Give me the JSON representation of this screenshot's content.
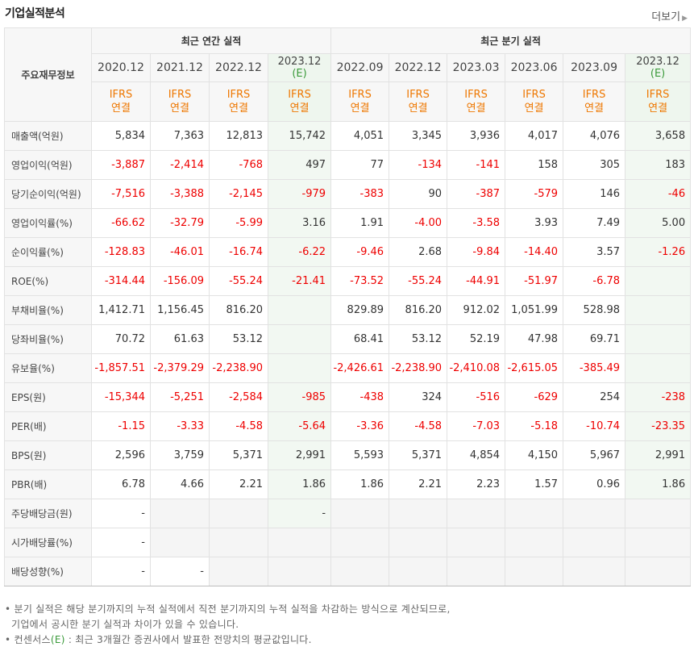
{
  "header": {
    "title": "기업실적분석",
    "more_label": "더보기"
  },
  "table": {
    "stub_header": "주요재무정보",
    "groups": [
      {
        "label": "최근 연간 실적"
      },
      {
        "label": "최근 분기 실적"
      }
    ],
    "periods": [
      {
        "label": "2020.12",
        "estimate": false
      },
      {
        "label": "2021.12",
        "estimate": false
      },
      {
        "label": "2022.12",
        "estimate": false
      },
      {
        "label": "2023.12",
        "estimate": true,
        "estimate_mark": "(E)"
      },
      {
        "label": "2022.09",
        "estimate": false
      },
      {
        "label": "2022.12",
        "estimate": false
      },
      {
        "label": "2023.03",
        "estimate": false
      },
      {
        "label": "2023.06",
        "estimate": false
      },
      {
        "label": "2023.09",
        "estimate": false
      },
      {
        "label": "2023.12",
        "estimate": true,
        "estimate_mark": "(E)"
      }
    ],
    "standard": {
      "line1": "IFRS",
      "line2": "연결"
    },
    "rows": [
      {
        "label": "매출액(억원)",
        "values": [
          "5,834",
          "7,363",
          "12,813",
          "15,742",
          "4,051",
          "3,345",
          "3,936",
          "4,017",
          "4,076",
          "3,658"
        ]
      },
      {
        "label": "영업이익(억원)",
        "values": [
          "-3,887",
          "-2,414",
          "-768",
          "497",
          "77",
          "-134",
          "-141",
          "158",
          "305",
          "183"
        ]
      },
      {
        "label": "당기순이익(억원)",
        "values": [
          "-7,516",
          "-3,388",
          "-2,145",
          "-979",
          "-383",
          "90",
          "-387",
          "-579",
          "146",
          "-46"
        ]
      },
      {
        "label": "영업이익률(%)",
        "values": [
          "-66.62",
          "-32.79",
          "-5.99",
          "3.16",
          "1.91",
          "-4.00",
          "-3.58",
          "3.93",
          "7.49",
          "5.00"
        ]
      },
      {
        "label": "순이익률(%)",
        "values": [
          "-128.83",
          "-46.01",
          "-16.74",
          "-6.22",
          "-9.46",
          "2.68",
          "-9.84",
          "-14.40",
          "3.57",
          "-1.26"
        ]
      },
      {
        "label": "ROE(%)",
        "values": [
          "-314.44",
          "-156.09",
          "-55.24",
          "-21.41",
          "-73.52",
          "-55.24",
          "-44.91",
          "-51.97",
          "-6.78",
          ""
        ]
      },
      {
        "label": "부채비율(%)",
        "values": [
          "1,412.71",
          "1,156.45",
          "816.20",
          "",
          "829.89",
          "816.20",
          "912.02",
          "1,051.99",
          "528.98",
          ""
        ]
      },
      {
        "label": "당좌비율(%)",
        "values": [
          "70.72",
          "61.63",
          "53.12",
          "",
          "68.41",
          "53.12",
          "52.19",
          "47.98",
          "69.71",
          ""
        ]
      },
      {
        "label": "유보율(%)",
        "values": [
          "-1,857.51",
          "-2,379.29",
          "-2,238.90",
          "",
          "-2,426.61",
          "-2,238.90",
          "-2,410.08",
          "-2,615.05",
          "-385.49",
          ""
        ]
      },
      {
        "label": "EPS(원)",
        "values": [
          "-15,344",
          "-5,251",
          "-2,584",
          "-985",
          "-438",
          "324",
          "-516",
          "-629",
          "254",
          "-238"
        ]
      },
      {
        "label": "PER(배)",
        "values": [
          "-1.15",
          "-3.33",
          "-4.58",
          "-5.64",
          "-3.36",
          "-4.58",
          "-7.03",
          "-5.18",
          "-10.74",
          "-23.35"
        ]
      },
      {
        "label": "BPS(원)",
        "values": [
          "2,596",
          "3,759",
          "5,371",
          "2,991",
          "5,593",
          "5,371",
          "4,854",
          "4,150",
          "5,967",
          "2,991"
        ]
      },
      {
        "label": "PBR(배)",
        "values": [
          "6.78",
          "4.66",
          "2.21",
          "1.86",
          "1.86",
          "2.21",
          "2.23",
          "1.57",
          "0.96",
          "1.86"
        ]
      },
      {
        "label": "주당배당금(원)",
        "values": [
          "-",
          "",
          "",
          "-",
          "",
          "",
          "",
          "",
          "",
          ""
        ]
      },
      {
        "label": "시가배당률(%)",
        "values": [
          "-",
          "",
          "",
          "",
          "",
          "",
          "",
          "",
          "",
          ""
        ]
      },
      {
        "label": "배당성향(%)",
        "values": [
          "-",
          "-",
          "",
          "",
          "",
          "",
          "",
          "",
          "",
          ""
        ]
      }
    ]
  },
  "notes": {
    "line1": "분기 실적은 해당 분기까지의 누적 실적에서 직전 분기까지의 누적 실적을 차감하는 방식으로 계산되므로,",
    "line2": "기업에서 공시한 분기 실적과 차이가 있을 수 있습니다.",
    "line3_prefix": "컨센서스",
    "line3_mark": "(E)",
    "line3_suffix": " : 최근 3개월간 증권사에서 발표한 전망치의 평균값입니다."
  },
  "colors": {
    "negative": "#ee0000",
    "accent_ifrs": "#ee7700",
    "estimate_mark": "#3a9a3a"
  }
}
